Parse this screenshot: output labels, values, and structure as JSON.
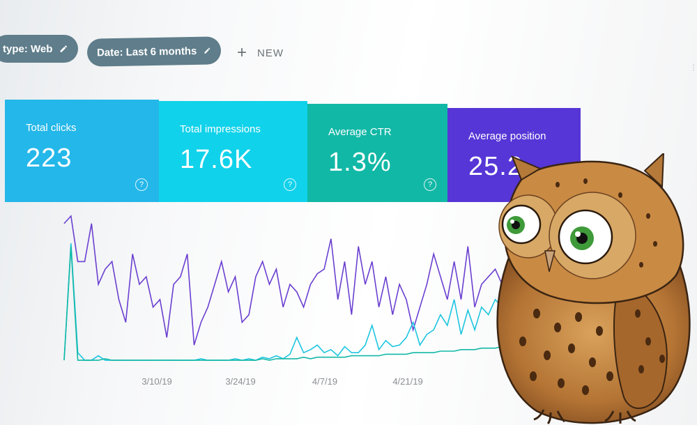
{
  "filters": {
    "type_chip": "type: Web",
    "date_chip": "Date: Last 6 months",
    "new_label": "NEW",
    "plus_icon": "plus-icon",
    "edit_icon": "pencil-icon"
  },
  "metrics": [
    {
      "label": "Total clicks",
      "value": "223",
      "color": "#24b7e9"
    },
    {
      "label": "Total impressions",
      "value": "17.6K",
      "color": "#10d2ea"
    },
    {
      "label": "Average CTR",
      "value": "1.3%",
      "color": "#12b8a6"
    },
    {
      "label": "Average position",
      "value": "25.2",
      "color": "#5636d6"
    }
  ],
  "help_icon": "?",
  "chart_data": {
    "type": "line",
    "x_tick_labels": [
      "3/10/19",
      "3/24/19",
      "4/7/19",
      "4/21/19"
    ],
    "series": [
      {
        "color": "#6a3fd0",
        "values": [
          95,
          100,
          70,
          70,
          95,
          55,
          65,
          70,
          45,
          30,
          75,
          55,
          60,
          40,
          45,
          20,
          55,
          60,
          75,
          15,
          30,
          40,
          55,
          70,
          50,
          60,
          30,
          35,
          60,
          70,
          55,
          65,
          40,
          55,
          50,
          40,
          55,
          62,
          65,
          85,
          45,
          70,
          35,
          80,
          55,
          70,
          40,
          60,
          35,
          55,
          45,
          25,
          40,
          55,
          75,
          60,
          45,
          70,
          45,
          80,
          40,
          55,
          60,
          65,
          55,
          70,
          40
        ]
      },
      {
        "color": "#1cc5e0",
        "values": [
          5,
          82,
          10,
          5,
          5,
          8,
          5,
          5,
          5,
          5,
          5,
          5,
          5,
          5,
          5,
          5,
          5,
          5,
          5,
          5,
          6,
          5,
          5,
          5,
          5,
          6,
          5,
          6,
          5,
          7,
          6,
          8,
          6,
          9,
          20,
          10,
          12,
          15,
          10,
          12,
          8,
          14,
          10,
          10,
          15,
          28,
          12,
          18,
          14,
          15,
          20,
          30,
          15,
          22,
          25,
          35,
          28,
          45,
          22,
          38,
          25,
          40,
          35,
          45,
          40,
          50,
          38
        ]
      },
      {
        "color": "#12b8a6",
        "values": [
          5,
          80,
          5,
          5,
          5,
          5,
          6,
          5,
          5,
          5,
          5,
          5,
          5,
          5,
          5,
          5,
          5,
          5,
          5,
          5,
          5,
          5,
          5,
          5,
          5,
          5,
          5,
          5,
          5,
          6,
          5,
          6,
          6,
          6,
          6,
          7,
          6,
          7,
          7,
          7,
          7,
          7,
          8,
          8,
          8,
          8,
          8,
          9,
          9,
          9,
          9,
          10,
          10,
          10,
          10,
          11,
          11,
          11,
          12,
          12,
          12,
          13,
          13,
          13,
          14,
          14,
          15
        ]
      }
    ]
  }
}
